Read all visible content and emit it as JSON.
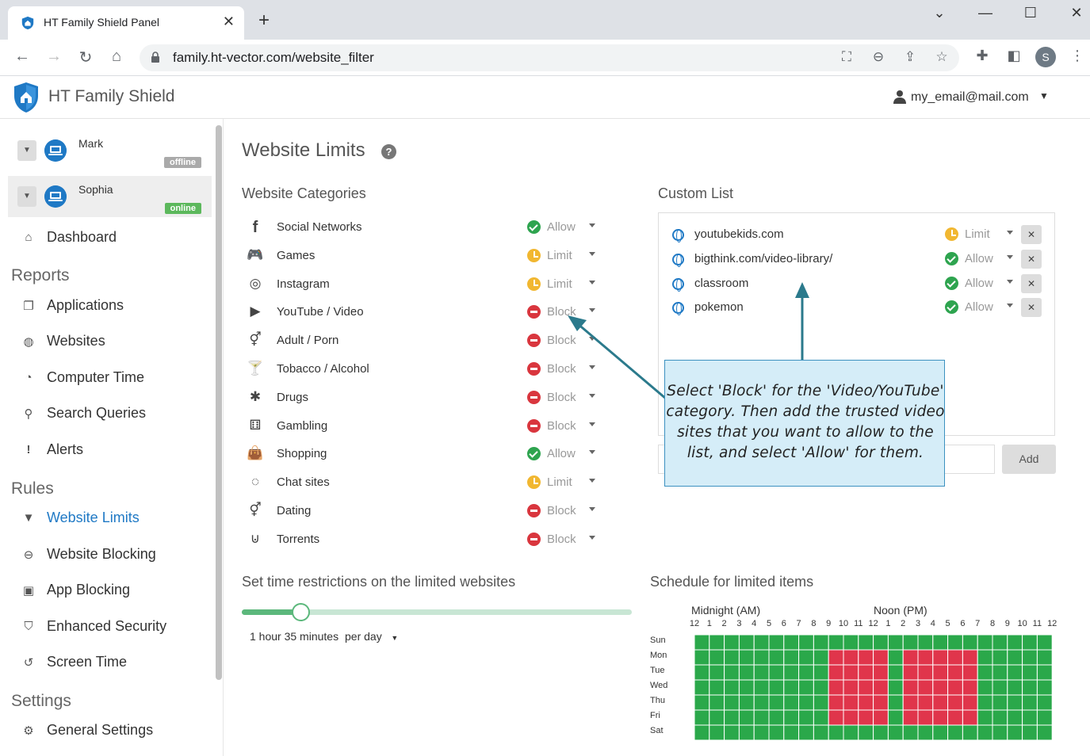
{
  "browser": {
    "tab_title": "HT Family Shield Panel",
    "url": "family.ht-vector.com/website_filter",
    "profile_initial": "S"
  },
  "app": {
    "title": "HT Family Shield",
    "user_email": "my_email@mail.com"
  },
  "sidebar": {
    "devices": [
      {
        "name": "Mark",
        "status": "offline"
      },
      {
        "name": "Sophia",
        "status": "online"
      }
    ],
    "dashboard": "Dashboard",
    "reports_head": "Reports",
    "reports": [
      "Applications",
      "Websites",
      "Computer Time",
      "Search Queries",
      "Alerts"
    ],
    "rules_head": "Rules",
    "rules": [
      "Website Limits",
      "Website Blocking",
      "App Blocking",
      "Enhanced Security",
      "Screen Time"
    ],
    "settings_head": "Settings",
    "settings": [
      "General Settings"
    ]
  },
  "main": {
    "page_title": "Website Limits",
    "categories_head": "Website Categories",
    "categories": [
      {
        "label": "Social Networks",
        "status": "Allow",
        "kind": "allow",
        "icon": "facebook-icon"
      },
      {
        "label": "Games",
        "status": "Limit",
        "kind": "limit",
        "icon": "gamepad-icon"
      },
      {
        "label": "Instagram",
        "status": "Limit",
        "kind": "limit",
        "icon": "instagram-icon"
      },
      {
        "label": "YouTube / Video",
        "status": "Block",
        "kind": "block",
        "icon": "youtube-icon"
      },
      {
        "label": "Adult / Porn",
        "status": "Block",
        "kind": "block",
        "icon": "gender-icon"
      },
      {
        "label": "Tobacco / Alcohol",
        "status": "Block",
        "kind": "block",
        "icon": "cocktail-icon"
      },
      {
        "label": "Drugs",
        "status": "Block",
        "kind": "block",
        "icon": "leaf-icon"
      },
      {
        "label": "Gambling",
        "status": "Block",
        "kind": "block",
        "icon": "dice-icon"
      },
      {
        "label": "Shopping",
        "status": "Allow",
        "kind": "allow",
        "icon": "shopping-bag-icon"
      },
      {
        "label": "Chat sites",
        "status": "Limit",
        "kind": "limit",
        "icon": "messenger-icon"
      },
      {
        "label": "Dating",
        "status": "Block",
        "kind": "block",
        "icon": "gender-icon"
      },
      {
        "label": "Torrents",
        "status": "Block",
        "kind": "block",
        "icon": "torrent-icon"
      }
    ],
    "custom_head": "Custom List",
    "custom_list": [
      {
        "label": "youtubekids.com",
        "status": "Limit",
        "kind": "limit"
      },
      {
        "label": "bigthink.com/video-library/",
        "status": "Allow",
        "kind": "allow"
      },
      {
        "label": "classroom",
        "status": "Allow",
        "kind": "allow"
      },
      {
        "label": "pokemon",
        "status": "Allow",
        "kind": "allow"
      }
    ],
    "add_button": "Add",
    "callout": "Select 'Block' for the 'Video/YouTube' category. Then add the trusted video sites that you want to allow to the list, and select 'Allow' for them.",
    "time_head": "Set time restrictions on the limited websites",
    "time_value": "1 hour 35 minutes",
    "time_unit": "per day",
    "time_fraction": 0.15,
    "schedule_head": "Schedule for limited items",
    "am_label": "Midnight (AM)",
    "pm_label": "Noon (PM)",
    "hour_labels": [
      "12",
      "1",
      "2",
      "3",
      "4",
      "5",
      "6",
      "7",
      "8",
      "9",
      "10",
      "11",
      "12",
      "1",
      "2",
      "3",
      "4",
      "5",
      "6",
      "7",
      "8",
      "9",
      "10",
      "11",
      "12"
    ],
    "days": [
      "Sun",
      "Mon",
      "Tue",
      "Wed",
      "Thu",
      "Fri",
      "Sat"
    ],
    "blocked_weekday_hours": [
      9,
      10,
      11,
      12,
      14,
      15,
      16,
      17,
      18
    ]
  },
  "colors": {
    "accent": "#1f79c5",
    "allow": "#2ea44f",
    "limit": "#f1b731",
    "block": "#d9363e",
    "grid_green": "#2aa84a",
    "grid_red": "#e0354b"
  }
}
